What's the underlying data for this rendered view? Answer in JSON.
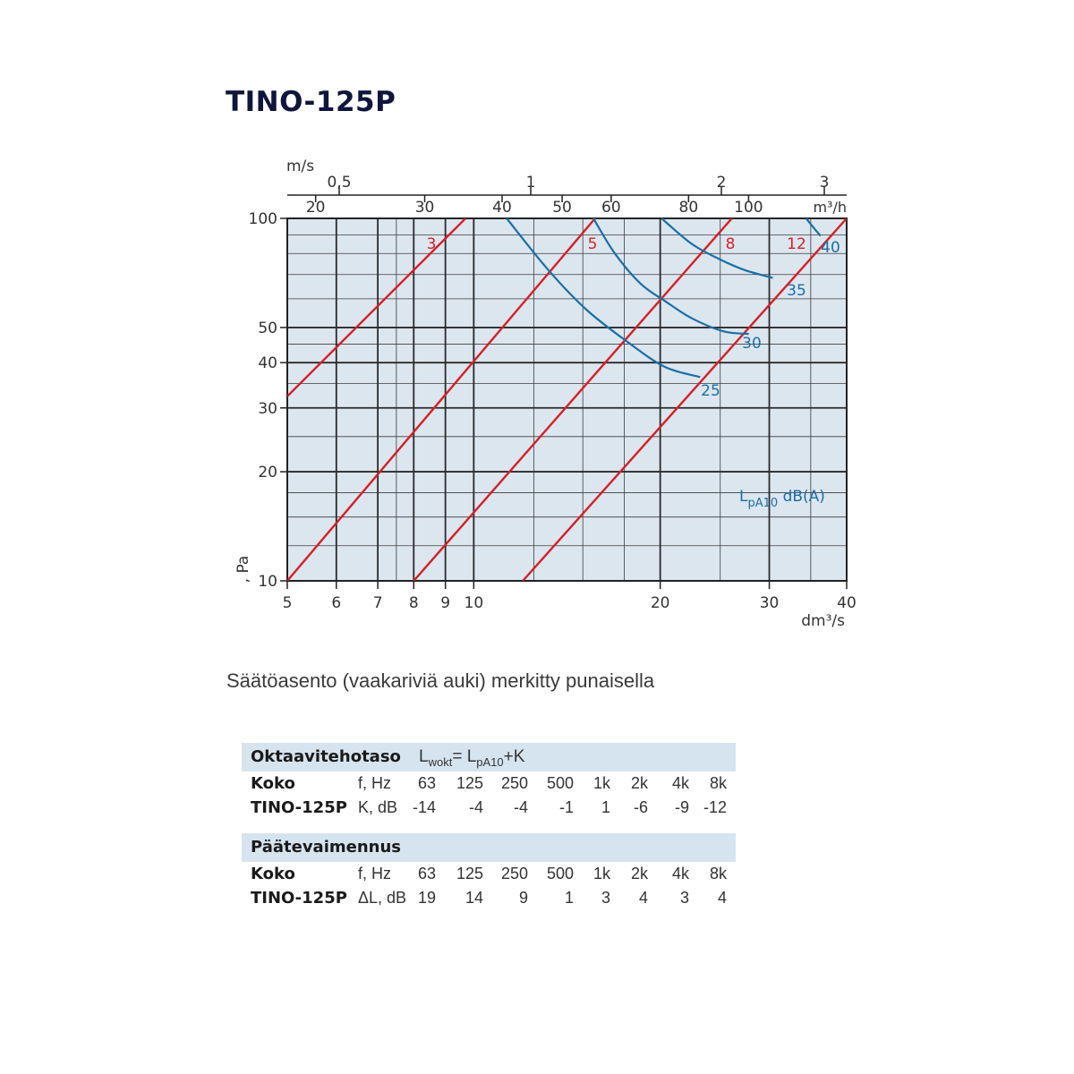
{
  "title": "TINO-125P",
  "caption": "Säätöasento (vaakariviä auki) merkitty punaisella",
  "chart_data": {
    "type": "line",
    "x_axis": {
      "label": "dm³/s",
      "scale": "log",
      "range": [
        5,
        40
      ],
      "ticks": [
        5,
        6,
        7,
        8,
        9,
        10,
        20,
        30,
        40
      ]
    },
    "y_axis": {
      "label": ", Pa",
      "scale": "log",
      "range": [
        10,
        100
      ],
      "ticks": [
        10,
        20,
        30,
        40,
        50,
        100
      ]
    },
    "top_axis_velocity": {
      "label": "m/s",
      "ticks": [
        {
          "label": "0,5",
          "value": 0.5
        },
        {
          "label": "1",
          "value": 1
        },
        {
          "label": "2",
          "value": 2
        },
        {
          "label": "3",
          "value": 3
        }
      ]
    },
    "top_axis_flow": {
      "label": "m³/h",
      "ticks": [
        20,
        30,
        40,
        50,
        60,
        80,
        100
      ]
    },
    "grid": true,
    "setting_lines": {
      "color": "#d42027",
      "series": [
        {
          "name": "3",
          "points": [
            [
              5,
              32.3
            ],
            [
              9.7,
              100
            ]
          ]
        },
        {
          "name": "5",
          "points": [
            [
              5,
              10
            ],
            [
              15.7,
              100
            ]
          ]
        },
        {
          "name": "8",
          "points": [
            [
              8,
              10
            ],
            [
              26.1,
              100
            ]
          ]
        },
        {
          "name": "12",
          "points": [
            [
              12,
              10
            ],
            [
              40,
              100
            ]
          ]
        }
      ]
    },
    "sound_curves": {
      "label_main": "L",
      "label_sub": "pA10",
      "label_unit": "dB(A)",
      "color": "#1a6fa8",
      "series": [
        {
          "name": "25",
          "points": [
            [
              11.3,
              100
            ],
            [
              13.2,
              72
            ],
            [
              15.2,
              56
            ],
            [
              17.6,
              46
            ],
            [
              20.3,
              39
            ],
            [
              23.2,
              36.5
            ]
          ]
        },
        {
          "name": "30",
          "points": [
            [
              15.6,
              100
            ],
            [
              16.9,
              80
            ],
            [
              18.6,
              66
            ],
            [
              20.4,
              59
            ],
            [
              22.5,
              53
            ],
            [
              25.3,
              48.8
            ],
            [
              27.8,
              48
            ]
          ]
        },
        {
          "name": "35",
          "points": [
            [
              20.1,
              100
            ],
            [
              22.5,
              85
            ],
            [
              25,
              77
            ],
            [
              27.4,
              72
            ],
            [
              30.4,
              68.5
            ]
          ]
        },
        {
          "name": "40",
          "points": [
            [
              34.4,
              100
            ],
            [
              35.6,
              93
            ],
            [
              36.3,
              89.5
            ]
          ]
        }
      ]
    }
  },
  "tables": [
    {
      "title": "Oktaavitehotaso",
      "formula": {
        "a": "L",
        "a_sub": "wokt",
        "eq": "= ",
        "b": "L",
        "b_sub": "pA10",
        "tail": "+K"
      },
      "rows": [
        {
          "label": "Koko",
          "qty": "f, Hz",
          "cells": [
            "63",
            "125",
            "250",
            "500",
            "1k",
            "2k",
            "4k",
            "8k"
          ]
        },
        {
          "label": "TINO-125P",
          "qty": "K, dB",
          "cells": [
            "-14",
            "-4",
            "-4",
            "-1",
            "1",
            "-6",
            "-9",
            "-12"
          ]
        }
      ]
    },
    {
      "title": "Päätevaimennus",
      "rows": [
        {
          "label": "Koko",
          "qty": "f, Hz",
          "cells": [
            "63",
            "125",
            "250",
            "500",
            "1k",
            "2k",
            "4k",
            "8k"
          ]
        },
        {
          "label": "TINO-125P",
          "qty": "ΔL, dB",
          "cells": [
            "19",
            "14",
            "9",
            "1",
            "3",
            "4",
            "3",
            "4"
          ]
        }
      ]
    }
  ]
}
